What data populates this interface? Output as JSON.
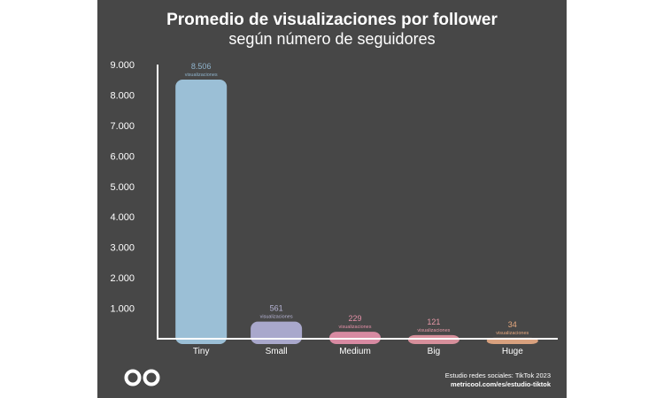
{
  "chart_data": {
    "type": "bar",
    "title": "Promedio de visualizaciones por follower",
    "subtitle": "según número de seguidores",
    "categories": [
      "Tiny",
      "Small",
      "Medium",
      "Big",
      "Huge"
    ],
    "values": [
      8506,
      561,
      229,
      121,
      34
    ],
    "value_labels": [
      "8.506",
      "561",
      "229",
      "121",
      "34"
    ],
    "value_unit": "visualizaciones",
    "ylim": [
      0,
      9000
    ],
    "yticks": [
      1000,
      2000,
      3000,
      4000,
      5000,
      6000,
      7000,
      8000,
      9000
    ],
    "ytick_labels": [
      "1.000",
      "2.000",
      "3.000",
      "4.000",
      "5.000",
      "6.000",
      "7.000",
      "8.000",
      "9.000"
    ],
    "grid": false,
    "bar_colors": [
      "#9bbfd6",
      "#a9a8cc",
      "#d88aa2",
      "#d78f9b",
      "#d9a17e"
    ],
    "label_colors": [
      "#8fb3cc",
      "#b7b5d6",
      "#e590a8",
      "#e899a8",
      "#e8a97f"
    ]
  },
  "footer": {
    "line1": "Estudio redes sociales: TikTok 2023",
    "line2": "metricool.com/es/estudio-tiktok"
  },
  "logo": {
    "icon": "metricool-infinity-icon"
  }
}
